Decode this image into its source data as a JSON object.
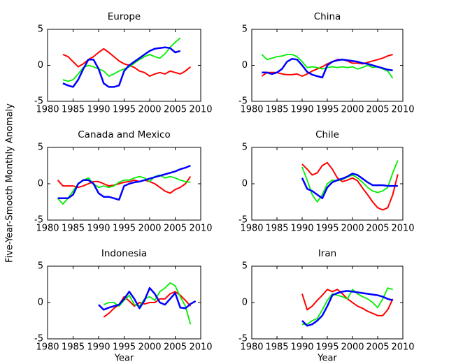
{
  "ylabel": "Five-Year-Smooth Monthly Anomaly",
  "chart_data": [
    {
      "type": "line",
      "title": "Europe",
      "x": [
        1983,
        1984,
        1985,
        1986,
        1987,
        1988,
        1989,
        1990,
        1991,
        1992,
        1993,
        1994,
        1995,
        1996,
        1997,
        1998,
        1999,
        2000,
        2001,
        2002,
        2003,
        2004,
        2005,
        2006,
        2007,
        2008
      ],
      "series": [
        {
          "color": "#ff0000",
          "values": [
            1.5,
            1.2,
            0.5,
            -0.2,
            0.2,
            0.8,
            1.2,
            1.8,
            2.3,
            1.8,
            1.2,
            0.6,
            0.2,
            0,
            -0.3,
            -0.8,
            -1.0,
            -1.5,
            -1.2,
            -1.0,
            -1.2,
            -0.8,
            -1.0,
            -1.2,
            -0.8,
            -0.2
          ]
        },
        {
          "color": "#00ee00",
          "values": [
            -2,
            -2.2,
            -2,
            -1.2,
            -0.3,
            0,
            -0.2,
            -0.5,
            -0.8,
            -1.5,
            -1.2,
            -0.8,
            -0.5,
            -0.2,
            0.3,
            0.8,
            1.2,
            1.5,
            1.2,
            1.0,
            1.6,
            2.5,
            3.2,
            3.8,
            null,
            null
          ]
        },
        {
          "color": "#0000ff",
          "values": [
            -2.5,
            -2.8,
            -3,
            -2,
            -0.5,
            0.8,
            0.8,
            -0.5,
            -2.5,
            -3,
            -3,
            -2.8,
            -0.8,
            0,
            0.5,
            1.0,
            1.5,
            2.0,
            2.3,
            2.4,
            2.5,
            2.4,
            1.8,
            2.0,
            null,
            null
          ]
        }
      ],
      "xlim": [
        1980,
        2010
      ],
      "ylim": [
        -5,
        5
      ],
      "xticks": [
        1980,
        1985,
        1990,
        1995,
        2000,
        2005,
        2010
      ],
      "yticks": [
        -5,
        0,
        5
      ]
    },
    {
      "type": "line",
      "title": "China",
      "x": [
        1982,
        1983,
        1984,
        1985,
        1986,
        1987,
        1988,
        1989,
        1990,
        1991,
        1992,
        1993,
        1994,
        1995,
        1996,
        1997,
        1998,
        1999,
        2000,
        2001,
        2002,
        2003,
        2004,
        2005,
        2006,
        2007,
        2008
      ],
      "series": [
        {
          "color": "#ff0000",
          "values": [
            -1.5,
            -1,
            -1,
            -1,
            -1.2,
            -1.3,
            -1.3,
            -1.2,
            -1.5,
            -1.2,
            -0.8,
            -0.5,
            -0.2,
            0.2,
            0.5,
            0.8,
            0.8,
            0.6,
            0.3,
            0.3,
            0.2,
            0.4,
            0.6,
            0.8,
            1,
            1.3,
            1.5
          ]
        },
        {
          "color": "#00ee00",
          "values": [
            1.5,
            0.8,
            1.0,
            1.2,
            1.3,
            1.5,
            1.5,
            1.2,
            0.5,
            -0.3,
            -0.2,
            -0.3,
            -0.5,
            -0.3,
            -0.2,
            -0.3,
            -0.2,
            -0.3,
            -0.2,
            -0.5,
            -0.3,
            0,
            -0.3,
            -0.2,
            -0.5,
            -0.8,
            -1.8
          ]
        },
        {
          "color": "#0000ff",
          "values": [
            -1,
            -1,
            -1.2,
            -1,
            -0.5,
            0.5,
            0.9,
            0.8,
            0,
            -0.9,
            -1.3,
            -1.5,
            -1.7,
            0,
            0.5,
            0.7,
            0.8,
            0.7,
            0.6,
            0.5,
            0.3,
            0.2,
            0,
            -0.2,
            -0.4,
            -0.6,
            -0.7
          ]
        }
      ],
      "xlim": [
        1980,
        2010
      ],
      "ylim": [
        -5,
        5
      ],
      "xticks": [
        1980,
        1985,
        1990,
        1995,
        2000,
        2005,
        2010
      ],
      "yticks": [
        -5,
        0,
        5
      ]
    },
    {
      "type": "line",
      "title": "Canada and Mexico",
      "x": [
        1982,
        1983,
        1984,
        1985,
        1986,
        1987,
        1988,
        1989,
        1990,
        1991,
        1992,
        1993,
        1994,
        1995,
        1996,
        1997,
        1998,
        1999,
        2000,
        2001,
        2002,
        2003,
        2004,
        2005,
        2006,
        2007,
        2008
      ],
      "series": [
        {
          "color": "#ff0000",
          "values": [
            0.5,
            -0.3,
            -0.3,
            -0.3,
            -0.5,
            -0.3,
            0,
            0.3,
            0.3,
            0,
            -0.3,
            -0.2,
            0,
            0.2,
            0.3,
            0.5,
            0.3,
            0.5,
            0.3,
            0,
            -0.5,
            -1,
            -1.3,
            -0.8,
            -0.5,
            0,
            1
          ]
        },
        {
          "color": "#00ee00",
          "values": [
            -2,
            -2.8,
            -2,
            -1,
            0,
            0.5,
            0.8,
            0,
            -0.5,
            -0.3,
            -0.5,
            -0.3,
            0.2,
            0.5,
            0.5,
            0.8,
            1.0,
            0.8,
            0.3,
            1.0,
            1.2,
            0.8,
            1.0,
            0.8,
            0.5,
            0.3,
            0.2
          ]
        },
        {
          "color": "#0000ff",
          "values": [
            -2,
            -2,
            -2,
            -1.5,
            0,
            0.5,
            0.5,
            0,
            -1.3,
            -1.8,
            -1.8,
            -2,
            -2.2,
            -0.3,
            0,
            0.2,
            0.3,
            0.5,
            0.7,
            0.9,
            1.1,
            1.3,
            1.5,
            1.7,
            2.0,
            2.2,
            2.5
          ]
        }
      ],
      "xlim": [
        1980,
        2010
      ],
      "ylim": [
        -5,
        5
      ],
      "xticks": [
        1980,
        1985,
        1990,
        1995,
        2000,
        2005,
        2010
      ],
      "yticks": [
        -5,
        0,
        5
      ]
    },
    {
      "type": "line",
      "title": "Chile",
      "x": [
        1990,
        1991,
        1992,
        1993,
        1994,
        1995,
        1996,
        1997,
        1998,
        1999,
        2000,
        2001,
        2002,
        2003,
        2004,
        2005,
        2006,
        2007,
        2008,
        2009
      ],
      "series": [
        {
          "color": "#ff0000",
          "values": [
            2.7,
            2.0,
            1.2,
            1.5,
            2.5,
            2.9,
            2.0,
            0.8,
            0.3,
            0.5,
            0.8,
            0.4,
            -0.6,
            -1.5,
            -2.5,
            -3.3,
            -3.6,
            -3.3,
            -1.5,
            1.3
          ]
        },
        {
          "color": "#00ee00",
          "values": [
            2.3,
            0.5,
            -1.5,
            -2.5,
            -1.5,
            0,
            0.5,
            0.4,
            0.6,
            0.9,
            1.2,
            0.8,
            0.2,
            -0.5,
            -1,
            -1.2,
            -1,
            -0.5,
            1.5,
            3.2
          ]
        },
        {
          "color": "#0000ff",
          "values": [
            0.8,
            -0.7,
            -1,
            -1.5,
            -2,
            -0.5,
            0.2,
            0.5,
            0.7,
            1,
            1.4,
            1.2,
            0.7,
            0.2,
            -0.2,
            -0.2,
            -0.2,
            -0.3,
            -0.3,
            -0.3
          ]
        }
      ],
      "xlim": [
        1980,
        2010
      ],
      "ylim": [
        -5,
        5
      ],
      "xticks": [
        1980,
        1985,
        1990,
        1995,
        2000,
        2005,
        2010
      ],
      "yticks": [
        -5,
        0,
        5
      ]
    },
    {
      "type": "line",
      "title": "Indonesia",
      "xlabel": "Year",
      "x": [
        1990,
        1991,
        1992,
        1993,
        1994,
        1995,
        1996,
        1997,
        1998,
        1999,
        2000,
        2001,
        2002,
        2003,
        2004,
        2005,
        2006,
        2007,
        2008,
        2009
      ],
      "series": [
        {
          "color": "#ff0000",
          "values": [
            null,
            -2,
            -1.5,
            -0.8,
            -0.3,
            0.8,
            0.2,
            -0.5,
            0,
            -0.2,
            0,
            0,
            0.5,
            0.5,
            1.2,
            1.5,
            1.0,
            0.3,
            -0.5,
            null
          ]
        },
        {
          "color": "#00ee00",
          "values": [
            null,
            -0.3,
            0,
            0,
            -0.5,
            0.3,
            1,
            -0.3,
            -0.5,
            0.5,
            0.8,
            0.3,
            1.5,
            2.0,
            2.7,
            2.3,
            0.8,
            -0.5,
            -3,
            null
          ]
        },
        {
          "color": "#0000ff",
          "values": [
            -0.3,
            -1,
            -0.7,
            -0.5,
            -0.3,
            0.5,
            1.5,
            0.5,
            -0.8,
            0.3,
            2.0,
            1.2,
            0,
            -0.3,
            0.5,
            1.3,
            -0.7,
            -0.8,
            -0.2,
            0.2
          ]
        }
      ],
      "xlim": [
        1980,
        2010
      ],
      "ylim": [
        -5,
        5
      ],
      "xticks": [
        1980,
        1985,
        1990,
        1995,
        2000,
        2005,
        2010
      ],
      "yticks": [
        -5,
        0,
        5
      ]
    },
    {
      "type": "line",
      "title": "Iran",
      "xlabel": "Year",
      "x": [
        1990,
        1991,
        1992,
        1993,
        1994,
        1995,
        1996,
        1997,
        1998,
        1999,
        2000,
        2001,
        2002,
        2003,
        2004,
        2005,
        2006,
        2007,
        2008
      ],
      "series": [
        {
          "color": "#ff0000",
          "values": [
            1.2,
            -1,
            -0.5,
            0.3,
            1.0,
            1.8,
            1.5,
            1.8,
            1.2,
            0.5,
            0,
            -0.5,
            -0.8,
            -1.2,
            -1.5,
            -1.8,
            -1.8,
            -1,
            0.5
          ]
        },
        {
          "color": "#00ee00",
          "values": [
            -3,
            -3,
            -2.5,
            -2.2,
            -1,
            0.3,
            1.2,
            1.0,
            0.8,
            0.5,
            1.8,
            1.2,
            0.8,
            0.5,
            0,
            -0.7,
            0.5,
            2.0,
            1.8
          ]
        },
        {
          "color": "#0000ff",
          "values": [
            -2.5,
            -3.2,
            -3,
            -2.5,
            -1.8,
            -0.5,
            1.0,
            1.3,
            1.5,
            1.6,
            1.5,
            1.4,
            1.3,
            1.2,
            1.1,
            1.0,
            0.8,
            0.5,
            0.3
          ]
        }
      ],
      "xlim": [
        1980,
        2010
      ],
      "ylim": [
        -5,
        5
      ],
      "xticks": [
        1980,
        1985,
        1990,
        1995,
        2000,
        2005,
        2010
      ],
      "yticks": [
        -5,
        0,
        5
      ]
    }
  ]
}
